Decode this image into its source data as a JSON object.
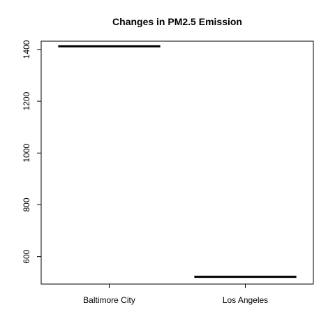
{
  "chart_data": {
    "type": "boxplot",
    "title": "Changes in PM2.5 Emission",
    "xlabel": "",
    "ylabel": "",
    "categories": [
      "Baltimore City",
      "Los Angeles"
    ],
    "values": [
      1412,
      522
    ],
    "ylim": [
      494,
      1432
    ],
    "yticks": [
      600,
      800,
      1000,
      1200,
      1400
    ],
    "grid": false,
    "legend": "none",
    "colors": {
      "line": "#000000",
      "axis": "#000000",
      "background": "#ffffff"
    }
  }
}
